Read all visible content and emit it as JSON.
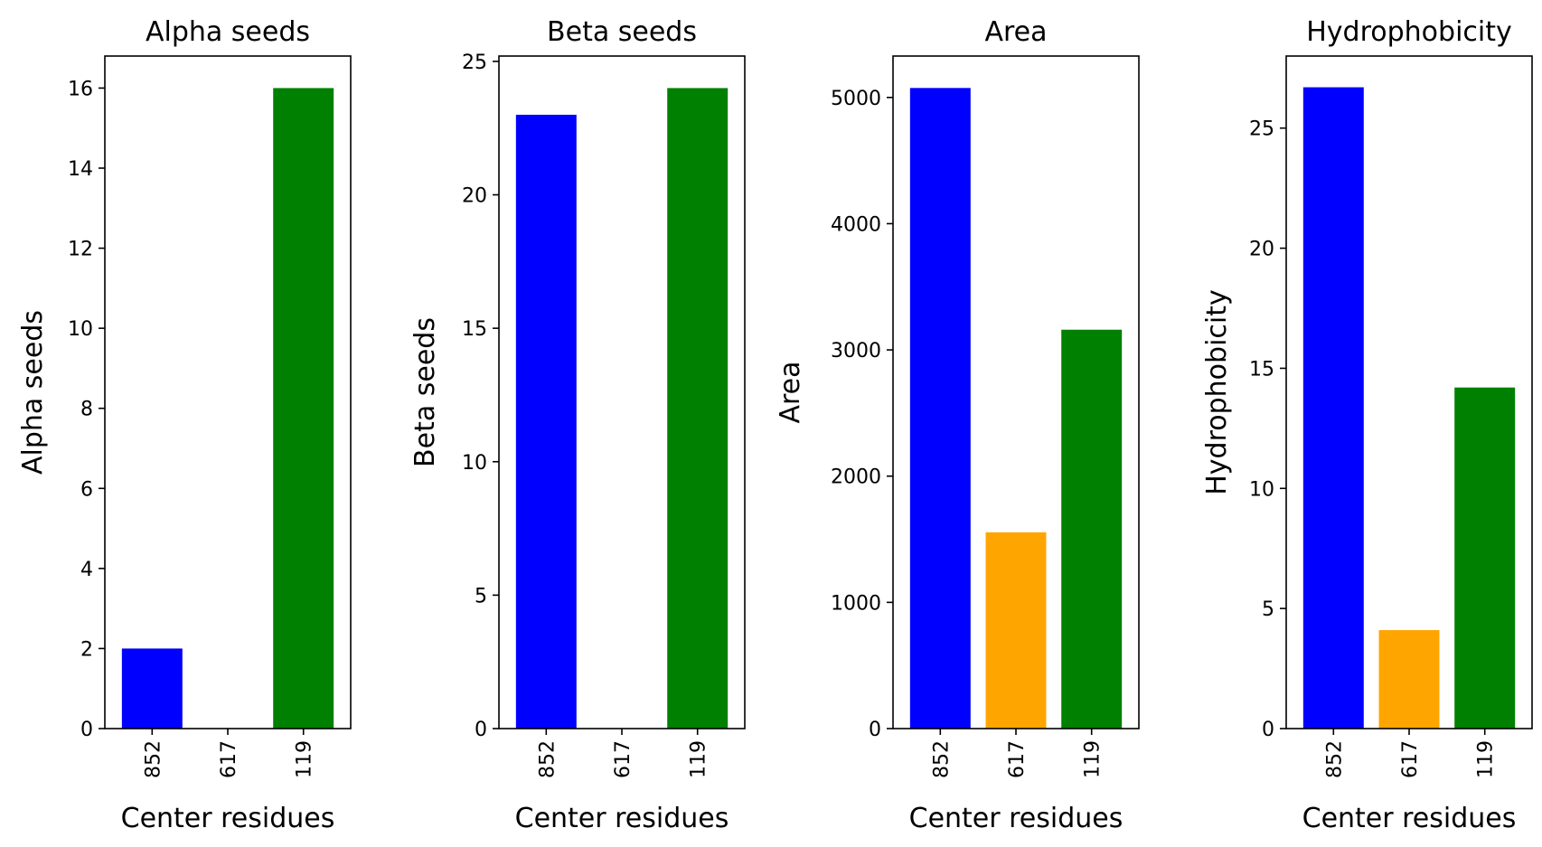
{
  "chart_data": [
    {
      "type": "bar",
      "title": "Alpha seeds",
      "xlabel": "Center residues",
      "ylabel": "Alpha seeds",
      "categories": [
        "852",
        "617",
        "119"
      ],
      "values": [
        2,
        0,
        16
      ],
      "colors": [
        "#0000ff",
        "#ffa500",
        "#008000"
      ],
      "ylim": [
        0,
        16.8
      ],
      "yticks": [
        0,
        2,
        4,
        6,
        8,
        10,
        12,
        14,
        16
      ],
      "grid": false
    },
    {
      "type": "bar",
      "title": "Beta seeds",
      "xlabel": "Center residues",
      "ylabel": "Beta seeds",
      "categories": [
        "852",
        "617",
        "119"
      ],
      "values": [
        23,
        0,
        24
      ],
      "colors": [
        "#0000ff",
        "#ffa500",
        "#008000"
      ],
      "ylim": [
        0,
        25.2
      ],
      "yticks": [
        0,
        5,
        10,
        15,
        20,
        25
      ],
      "grid": false
    },
    {
      "type": "bar",
      "title": "Area",
      "xlabel": "Center residues",
      "ylabel": "Area",
      "categories": [
        "852",
        "617",
        "119"
      ],
      "values": [
        5075,
        1555,
        3160
      ],
      "colors": [
        "#0000ff",
        "#ffa500",
        "#008000"
      ],
      "ylim": [
        0,
        5328
      ],
      "yticks": [
        0,
        1000,
        2000,
        3000,
        4000,
        5000
      ],
      "grid": false
    },
    {
      "type": "bar",
      "title": "Hydrophobicity",
      "xlabel": "Center residues",
      "ylabel": "Hydrophobicity",
      "categories": [
        "852",
        "617",
        "119"
      ],
      "values": [
        26.7,
        4.1,
        14.2
      ],
      "colors": [
        "#0000ff",
        "#ffa500",
        "#008000"
      ],
      "ylim": [
        0,
        28.0
      ],
      "yticks": [
        0,
        5,
        10,
        15,
        20,
        25
      ],
      "grid": false
    }
  ]
}
